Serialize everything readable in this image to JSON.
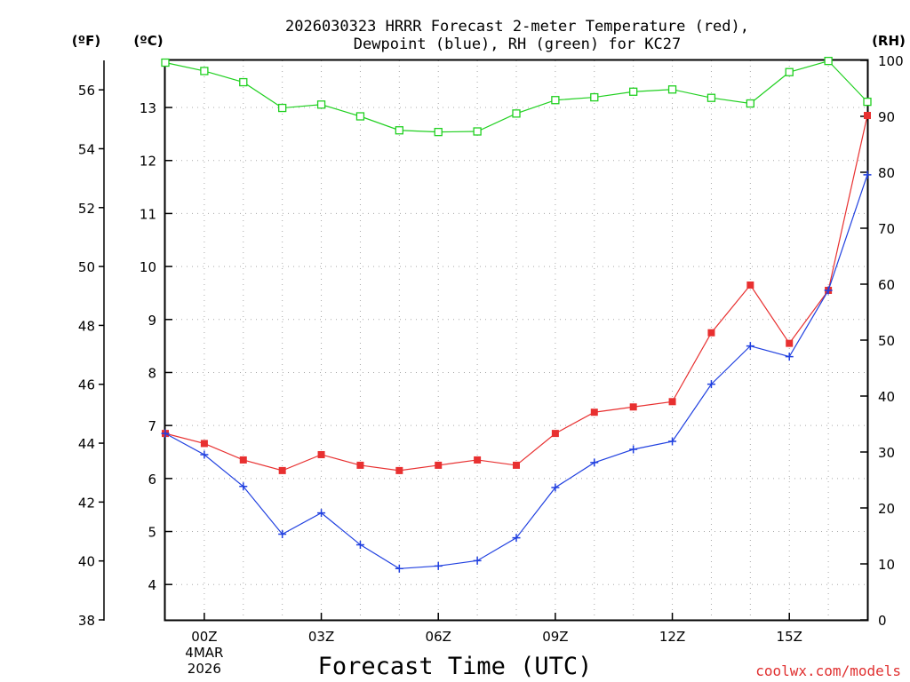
{
  "chart_data": {
    "type": "line",
    "title_lines": [
      "2026030323 HRRR Forecast 2-meter Temperature (red),",
      "Dewpoint (blue), RH (green) for KC27"
    ],
    "xlabel": "Forecast Time (UTC)",
    "credit": "coolwx.com/models",
    "credit_color": "#e03030",
    "x_hours": [
      -1,
      0,
      1,
      2,
      3,
      4,
      5,
      6,
      7,
      8,
      9,
      10,
      11,
      12,
      13,
      14,
      15,
      16,
      17
    ],
    "x_range": [
      -1,
      17
    ],
    "x_ticks": [
      {
        "hour": 0,
        "label": "00Z",
        "sub": [
          "4MAR",
          "2026"
        ]
      },
      {
        "hour": 3,
        "label": "03Z",
        "sub": []
      },
      {
        "hour": 6,
        "label": "06Z",
        "sub": []
      },
      {
        "hour": 9,
        "label": "09Z",
        "sub": []
      },
      {
        "hour": 12,
        "label": "12Z",
        "sub": []
      },
      {
        "hour": 15,
        "label": "15Z",
        "sub": []
      }
    ],
    "axes": {
      "fahrenheit": {
        "unit_label": "(ºF)",
        "range": [
          38,
          57
        ],
        "ticks": [
          "38",
          "40",
          "42",
          "44",
          "46",
          "48",
          "50",
          "52",
          "54",
          "56"
        ]
      },
      "celsius": {
        "unit_label": "(ºC)",
        "range": [
          3.3333,
          13.8889
        ],
        "ticks": [
          "4",
          "5",
          "6",
          "7",
          "8",
          "9",
          "10",
          "11",
          "12",
          "13"
        ]
      },
      "rh": {
        "unit_label": "(RH)",
        "range": [
          0,
          100
        ],
        "ticks": [
          "0",
          "10",
          "20",
          "30",
          "40",
          "50",
          "60",
          "70",
          "80",
          "90",
          "100"
        ]
      }
    },
    "grid": true,
    "series": [
      {
        "name": "Temperature",
        "axis": "celsius",
        "color": "#e83030",
        "marker": "filled-square",
        "values": [
          6.85,
          6.66,
          6.35,
          6.15,
          6.45,
          6.25,
          6.15,
          6.25,
          6.35,
          6.25,
          6.85,
          7.25,
          7.35,
          7.45,
          8.75,
          9.65,
          8.55,
          9.55,
          12.85
        ]
      },
      {
        "name": "Dewpoint",
        "axis": "celsius",
        "color": "#2040e0",
        "marker": "plus",
        "values": [
          6.85,
          6.45,
          5.85,
          4.95,
          5.35,
          4.75,
          4.3,
          4.35,
          4.45,
          4.88,
          5.83,
          6.3,
          6.55,
          6.7,
          7.78,
          8.5,
          8.3,
          9.55,
          11.73
        ]
      },
      {
        "name": "RH",
        "axis": "rh",
        "color": "#20d020",
        "marker": "open-square",
        "values": [
          99.6,
          98.1,
          96.1,
          91.5,
          92.1,
          90.0,
          87.5,
          87.2,
          87.3,
          90.5,
          92.9,
          93.4,
          94.4,
          94.8,
          93.3,
          92.3,
          97.9,
          99.9,
          92.6
        ]
      }
    ]
  }
}
